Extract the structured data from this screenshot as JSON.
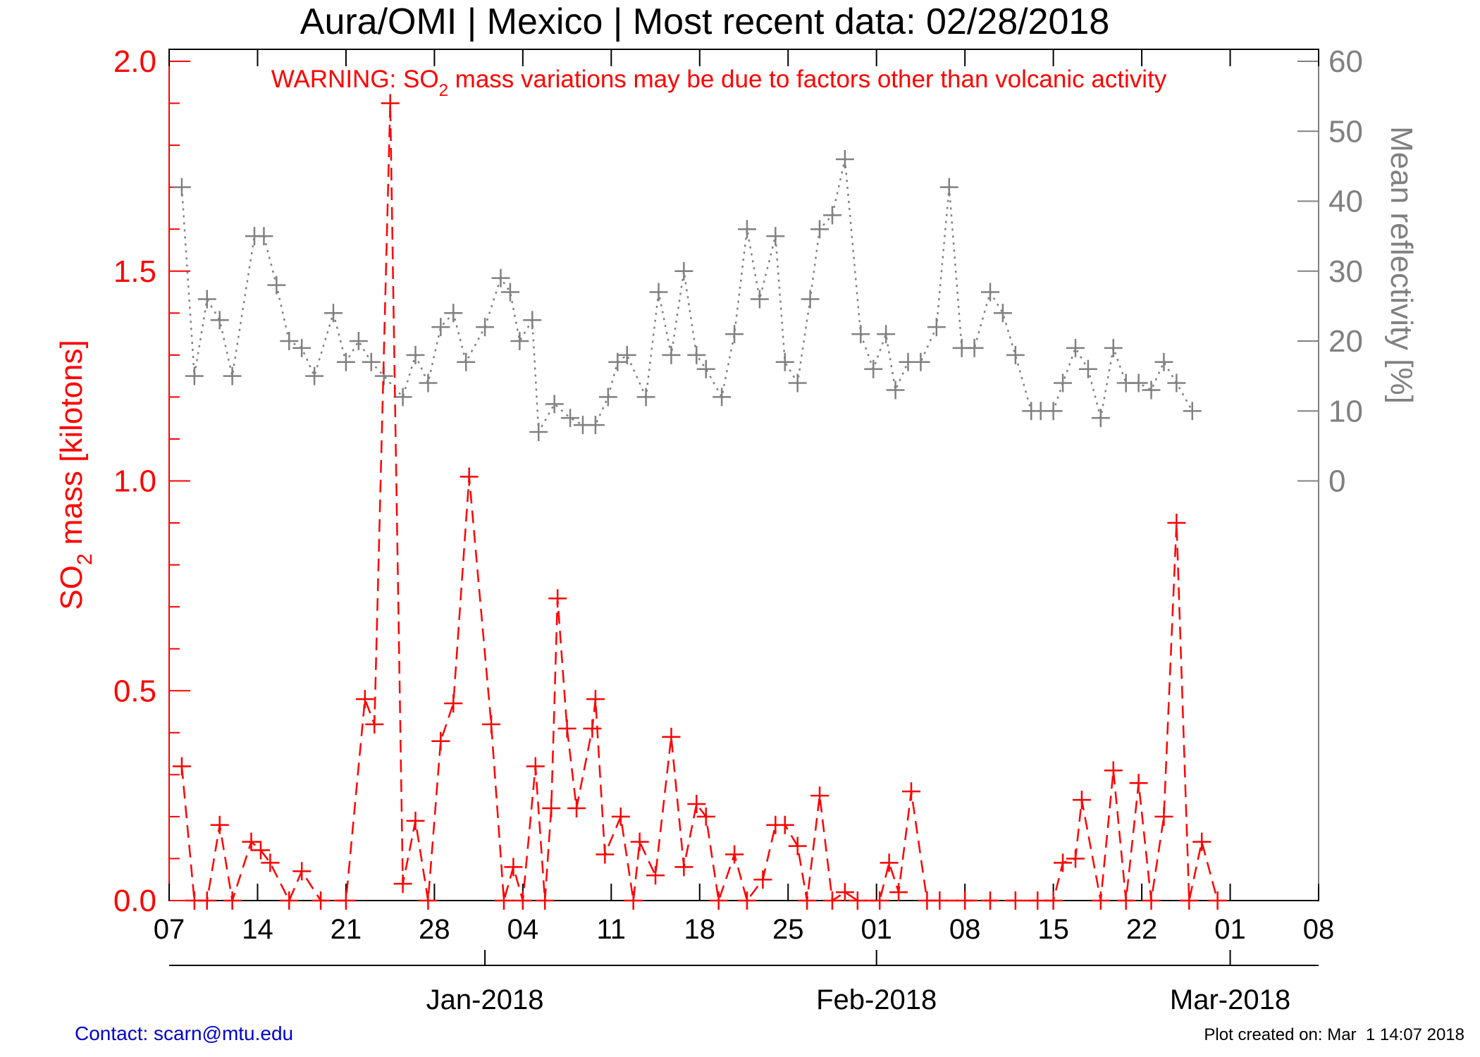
{
  "chart_data": {
    "type": "line",
    "title": "Aura/OMI | Mexico | Most recent data: 02/28/2018",
    "warning": {
      "prefix": "WARNING: SO",
      "sub": "2",
      "suffix": " mass variations may be due to factors other than volcanic activity"
    },
    "ylabel_left": {
      "prefix": "SO",
      "sub": "2",
      "suffix": " mass [kilotons]"
    },
    "ylabel_right": "Mean reflectivity [%]",
    "ylim_left": [
      0,
      2.0
    ],
    "ylim_right": [
      -60,
      60
    ],
    "yticks_left": [
      "0.0",
      "0.5",
      "1.0",
      "1.5",
      "2.0"
    ],
    "yticks_right": [
      "0",
      "10",
      "20",
      "30",
      "40",
      "50",
      "60"
    ],
    "x_range": [
      "2017-12-07",
      "2018-03-08"
    ],
    "x_ticks": [
      {
        "date": "2017-12-07",
        "label": "07"
      },
      {
        "date": "2017-12-14",
        "label": "14"
      },
      {
        "date": "2017-12-21",
        "label": "21"
      },
      {
        "date": "2017-12-28",
        "label": "28"
      },
      {
        "date": "2018-01-04",
        "label": "04"
      },
      {
        "date": "2018-01-11",
        "label": "11"
      },
      {
        "date": "2018-01-18",
        "label": "18"
      },
      {
        "date": "2018-01-25",
        "label": "25"
      },
      {
        "date": "2018-02-01",
        "label": "01"
      },
      {
        "date": "2018-02-08",
        "label": "08"
      },
      {
        "date": "2018-02-15",
        "label": "15"
      },
      {
        "date": "2018-02-22",
        "label": "22"
      },
      {
        "date": "2018-03-01",
        "label": "01"
      },
      {
        "date": "2018-03-08",
        "label": "08"
      }
    ],
    "month_ticks": [
      {
        "date": "2018-01-01",
        "label": "Jan-2018"
      },
      {
        "date": "2018-02-01",
        "label": "Feb-2018"
      },
      {
        "date": "2018-03-01",
        "label": "Mar-2018"
      }
    ],
    "grid": false,
    "series": [
      {
        "name": "SO2 mass",
        "axis": "left",
        "color": "#ff0000",
        "style": "dashed",
        "marker": "plus",
        "points": [
          [
            "2017-12-08T00:00",
            0.32
          ],
          [
            "2017-12-09T00:00",
            0.0
          ],
          [
            "2017-12-10T00:00",
            0.0
          ],
          [
            "2017-12-11T00:00",
            0.18
          ],
          [
            "2017-12-12T00:00",
            0.0
          ],
          [
            "2017-12-13T12:00",
            0.14
          ],
          [
            "2017-12-14T06:00",
            0.12
          ],
          [
            "2017-12-15T00:00",
            0.09
          ],
          [
            "2017-12-16T12:00",
            0.0
          ],
          [
            "2017-12-17T12:00",
            0.07
          ],
          [
            "2017-12-19T00:00",
            0.0
          ],
          [
            "2017-12-21T00:00",
            0.0
          ],
          [
            "2017-12-22T12:00",
            0.48
          ],
          [
            "2017-12-23T06:00",
            0.42
          ],
          [
            "2017-12-24T12:00",
            1.9
          ],
          [
            "2017-12-25T12:00",
            0.04
          ],
          [
            "2017-12-26T12:00",
            0.19
          ],
          [
            "2017-12-27T12:00",
            0.0
          ],
          [
            "2017-12-28T12:00",
            0.38
          ],
          [
            "2017-12-29T12:00",
            0.47
          ],
          [
            "2017-12-30T18:00",
            1.01
          ],
          [
            "2018-01-01T12:00",
            0.42
          ],
          [
            "2018-01-02T12:00",
            0.0
          ],
          [
            "2018-01-03T06:00",
            0.08
          ],
          [
            "2018-01-04T00:00",
            0.0
          ],
          [
            "2018-01-05T00:00",
            0.32
          ],
          [
            "2018-01-05T18:00",
            0.0
          ],
          [
            "2018-01-06T06:00",
            0.22
          ],
          [
            "2018-01-06T18:00",
            0.72
          ],
          [
            "2018-01-07T12:00",
            0.41
          ],
          [
            "2018-01-08T06:00",
            0.22
          ],
          [
            "2018-01-09T12:00",
            0.41
          ],
          [
            "2018-01-09T18:00",
            0.48
          ],
          [
            "2018-01-10T12:00",
            0.11
          ],
          [
            "2018-01-11T18:00",
            0.2
          ],
          [
            "2018-01-12T18:00",
            0.0
          ],
          [
            "2018-01-13T06:00",
            0.14
          ],
          [
            "2018-01-14T12:00",
            0.06
          ],
          [
            "2018-01-15T18:00",
            0.39
          ],
          [
            "2018-01-16T18:00",
            0.08
          ],
          [
            "2018-01-17T18:00",
            0.23
          ],
          [
            "2018-01-18T12:00",
            0.2
          ],
          [
            "2018-01-19T12:00",
            0.0
          ],
          [
            "2018-01-20T18:00",
            0.11
          ],
          [
            "2018-01-21T18:00",
            0.0
          ],
          [
            "2018-01-23T00:00",
            0.05
          ],
          [
            "2018-01-24T00:00",
            0.18
          ],
          [
            "2018-01-24T18:00",
            0.18
          ],
          [
            "2018-01-25T18:00",
            0.13
          ],
          [
            "2018-01-26T12:00",
            0.0
          ],
          [
            "2018-01-27T12:00",
            0.25
          ],
          [
            "2018-01-28T12:00",
            0.0
          ],
          [
            "2018-01-29T12:00",
            0.02
          ],
          [
            "2018-01-30T12:00",
            0.0
          ],
          [
            "2018-02-01T06:00",
            0.0
          ],
          [
            "2018-02-02T00:00",
            0.09
          ],
          [
            "2018-02-02T18:00",
            0.02
          ],
          [
            "2018-02-03T18:00",
            0.26
          ],
          [
            "2018-02-05T00:00",
            0.0
          ],
          [
            "2018-02-06T00:00",
            0.0
          ],
          [
            "2018-02-08T00:00",
            0.0
          ],
          [
            "2018-02-10T00:00",
            0.0
          ],
          [
            "2018-02-12T00:00",
            0.0
          ],
          [
            "2018-02-13T18:00",
            0.0
          ],
          [
            "2018-02-15T00:00",
            0.0
          ],
          [
            "2018-02-15T18:00",
            0.09
          ],
          [
            "2018-02-16T18:00",
            0.1
          ],
          [
            "2018-02-17T06:00",
            0.24
          ],
          [
            "2018-02-18T18:00",
            0.0
          ],
          [
            "2018-02-19T18:00",
            0.31
          ],
          [
            "2018-02-20T18:00",
            0.0
          ],
          [
            "2018-02-21T18:00",
            0.28
          ],
          [
            "2018-02-22T18:00",
            0.0
          ],
          [
            "2018-02-23T18:00",
            0.2
          ],
          [
            "2018-02-24T18:00",
            0.9
          ],
          [
            "2018-02-25T18:00",
            0.0
          ],
          [
            "2018-02-26T18:00",
            0.14
          ],
          [
            "2018-02-28T00:00",
            0.0
          ]
        ]
      },
      {
        "name": "Mean reflectivity",
        "axis": "right",
        "color": "#808080",
        "style": "dotted",
        "marker": "plus",
        "points": [
          [
            "2017-12-08T00:00",
            42
          ],
          [
            "2017-12-09T00:00",
            15
          ],
          [
            "2017-12-10T00:00",
            26
          ],
          [
            "2017-12-11T00:00",
            23
          ],
          [
            "2017-12-12T00:00",
            15
          ],
          [
            "2017-12-13T18:00",
            35
          ],
          [
            "2017-12-14T12:00",
            35
          ],
          [
            "2017-12-15T12:00",
            28
          ],
          [
            "2017-12-16T12:00",
            20
          ],
          [
            "2017-12-17T12:00",
            19
          ],
          [
            "2017-12-18T12:00",
            15
          ],
          [
            "2017-12-20T00:00",
            24
          ],
          [
            "2017-12-21T00:00",
            17
          ],
          [
            "2017-12-22T00:00",
            20
          ],
          [
            "2017-12-23T00:00",
            17
          ],
          [
            "2017-12-24T00:00",
            15
          ],
          [
            "2017-12-25T12:00",
            12
          ],
          [
            "2017-12-26T12:00",
            18
          ],
          [
            "2017-12-27T12:00",
            14
          ],
          [
            "2017-12-28T12:00",
            22
          ],
          [
            "2017-12-29T12:00",
            24
          ],
          [
            "2017-12-30T12:00",
            17
          ],
          [
            "2018-01-01T00:00",
            22
          ],
          [
            "2018-01-02T06:00",
            29
          ],
          [
            "2018-01-03T00:00",
            27
          ],
          [
            "2018-01-03T18:00",
            20
          ],
          [
            "2018-01-04T18:00",
            23
          ],
          [
            "2018-01-05T06:00",
            7
          ],
          [
            "2018-01-06T12:00",
            11
          ],
          [
            "2018-01-07T18:00",
            9
          ],
          [
            "2018-01-08T18:00",
            8
          ],
          [
            "2018-01-09T18:00",
            8
          ],
          [
            "2018-01-10T18:00",
            12
          ],
          [
            "2018-01-11T12:00",
            17
          ],
          [
            "2018-01-12T06:00",
            18
          ],
          [
            "2018-01-13T18:00",
            12
          ],
          [
            "2018-01-14T18:00",
            27
          ],
          [
            "2018-01-15T18:00",
            18
          ],
          [
            "2018-01-16T18:00",
            30
          ],
          [
            "2018-01-17T18:00",
            18
          ],
          [
            "2018-01-18T12:00",
            16
          ],
          [
            "2018-01-19T18:00",
            12
          ],
          [
            "2018-01-20T18:00",
            21
          ],
          [
            "2018-01-21T18:00",
            36
          ],
          [
            "2018-01-22T18:00",
            26
          ],
          [
            "2018-01-24T00:00",
            35
          ],
          [
            "2018-01-24T18:00",
            17
          ],
          [
            "2018-01-25T18:00",
            14
          ],
          [
            "2018-01-26T18:00",
            26
          ],
          [
            "2018-01-27T12:00",
            36
          ],
          [
            "2018-01-28T12:00",
            38
          ],
          [
            "2018-01-29T12:00",
            46
          ],
          [
            "2018-01-30T18:00",
            21
          ],
          [
            "2018-01-31T18:00",
            16
          ],
          [
            "2018-02-01T18:00",
            21
          ],
          [
            "2018-02-02T12:00",
            13
          ],
          [
            "2018-02-03T12:00",
            17
          ],
          [
            "2018-02-04T12:00",
            17
          ],
          [
            "2018-02-05T18:00",
            22
          ],
          [
            "2018-02-06T18:00",
            42
          ],
          [
            "2018-02-07T18:00",
            19
          ],
          [
            "2018-02-08T18:00",
            19
          ],
          [
            "2018-02-10T00:00",
            27
          ],
          [
            "2018-02-11T00:00",
            24
          ],
          [
            "2018-02-12T00:00",
            18
          ],
          [
            "2018-02-13T06:00",
            10
          ],
          [
            "2018-02-14T00:00",
            10
          ],
          [
            "2018-02-15T00:00",
            10
          ],
          [
            "2018-02-15T18:00",
            14
          ],
          [
            "2018-02-16T18:00",
            19
          ],
          [
            "2018-02-17T18:00",
            16
          ],
          [
            "2018-02-18T18:00",
            9
          ],
          [
            "2018-02-19T18:00",
            19
          ],
          [
            "2018-02-20T18:00",
            14
          ],
          [
            "2018-02-21T18:00",
            14
          ],
          [
            "2018-02-22T18:00",
            13
          ],
          [
            "2018-02-23T18:00",
            17
          ],
          [
            "2018-02-24T18:00",
            14
          ],
          [
            "2018-02-26T00:00",
            10
          ]
        ]
      }
    ]
  },
  "footer": {
    "contact": "Contact: scarn@mtu.edu",
    "created": "Plot created on: Mar  1 14:07 2018"
  }
}
